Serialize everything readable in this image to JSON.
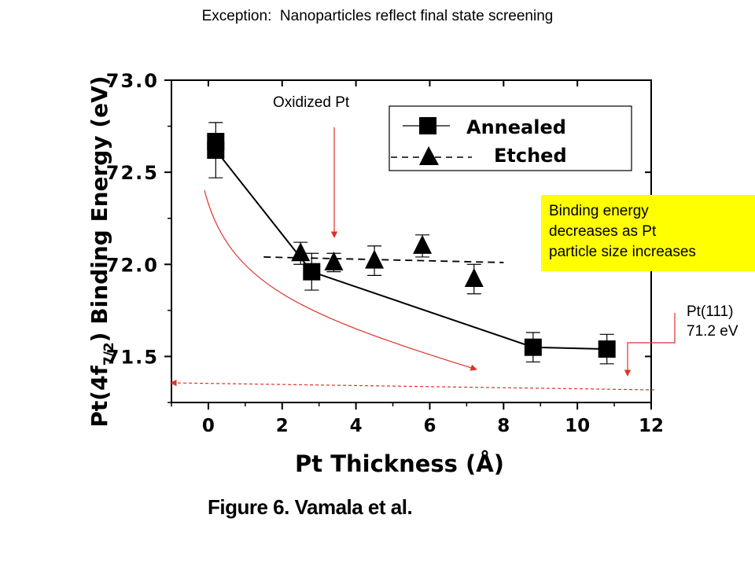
{
  "heading": "Exception:  Nanoparticles reflect final state screening",
  "caption": "Figure 6. Vamala et al.",
  "annotations": {
    "oxidized": "Oxidized Pt",
    "trend_note": [
      "Binding energy",
      "decreases as Pt",
      "particle size increases"
    ],
    "reference": [
      "Pt(111)",
      "71.2 eV"
    ]
  },
  "colors": {
    "annotation_arrow": "#e0302a",
    "note_background": "#ffff00",
    "marker": "#000000"
  },
  "chart_data": {
    "type": "scatter",
    "xlabel": "Pt Thickness (Å)",
    "ylabel_parts": [
      "Pt(4f",
      "7/2",
      ") Binding  Energy (eV)"
    ],
    "xlim": [
      -1,
      12
    ],
    "ylim": [
      71.25,
      73.0
    ],
    "x_ticks": [
      "0",
      "2",
      "4",
      "6",
      "8",
      "10",
      "12"
    ],
    "y_ticks": [
      "71.5",
      "72.0",
      "72.5",
      "73.0"
    ],
    "grid": false,
    "legend_position": "top-right",
    "series": [
      {
        "name": "Annealed",
        "marker": "square",
        "line": "solid",
        "x": [
          0.2,
          2.8,
          8.8,
          10.8
        ],
        "y": [
          72.62,
          71.96,
          71.55,
          71.54
        ],
        "yerr": [
          0.15,
          0.1,
          0.08,
          0.08
        ]
      },
      {
        "name": "Etched",
        "marker": "triangle",
        "line": "dashed",
        "x": [
          2.5,
          3.4,
          4.5,
          5.8,
          7.2
        ],
        "y": [
          72.06,
          72.01,
          72.02,
          72.1,
          71.92
        ],
        "yerr": [
          0.06,
          0.05,
          0.08,
          0.06,
          0.08
        ]
      }
    ],
    "etched_trend": {
      "x": [
        1.5,
        8
      ],
      "y": [
        72.04,
        72.01
      ]
    },
    "reference_level": 71.2
  }
}
